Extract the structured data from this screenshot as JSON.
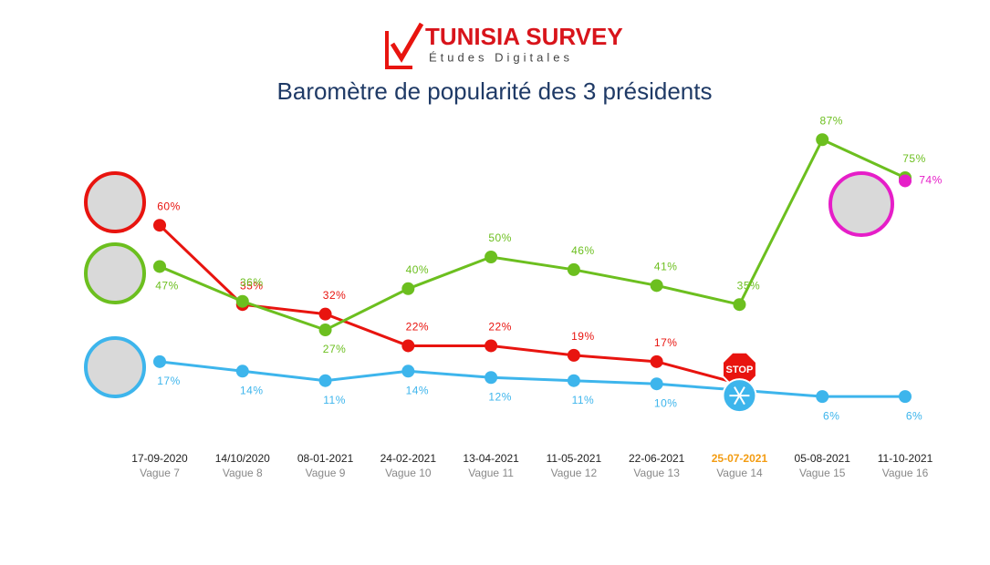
{
  "header": {
    "brand": "TUNISIA SURVEY",
    "tagline": "Études Digitales"
  },
  "chart_data": {
    "type": "line",
    "title": "Baromètre de popularité des 3 présidents",
    "categories": [
      "17-09-2020",
      "14/10/2020",
      "08-01-2021",
      "24-02-2021",
      "13-04-2021",
      "11-05-2021",
      "22-06-2021",
      "25-07-2021",
      "05-08-2021",
      "11-10-2021"
    ],
    "waves": [
      "Vague 7",
      "Vague 8",
      "Vague 9",
      "Vague 10",
      "Vague 11",
      "Vague 12",
      "Vague 13",
      "Vague 14",
      "Vague 15",
      "Vague 16"
    ],
    "highlight": 7,
    "highlight_color": "#f39c12",
    "stop_label": "STOP",
    "ylim": [
      0,
      100
    ],
    "series": [
      {
        "color": "#e8140f",
        "values": [
          60,
          35,
          32,
          22,
          22,
          19,
          17,
          10,
          null,
          null
        ],
        "value_labels": [
          "60%",
          "35%",
          "32%",
          "22%",
          "22%",
          "19%",
          "17%",
          null,
          null,
          null
        ]
      },
      {
        "color": "#6cbf1f",
        "values": [
          47,
          36,
          27,
          40,
          50,
          46,
          41,
          35,
          87,
          75
        ],
        "value_labels": [
          "47%",
          "36%",
          "27%",
          "40%",
          "50%",
          "46%",
          "41%",
          "35%",
          "87%",
          "75%"
        ]
      },
      {
        "color": "#3db5ec",
        "values": [
          17,
          14,
          11,
          14,
          12,
          11,
          10,
          8,
          6,
          6
        ],
        "value_labels": [
          "17%",
          "14%",
          "11%",
          "14%",
          "12%",
          "11%",
          "10%",
          null,
          "6%",
          "6%"
        ]
      },
      {
        "color": "#e61ec8",
        "values": [
          null,
          null,
          null,
          null,
          null,
          null,
          null,
          null,
          null,
          74
        ],
        "value_labels": [
          null,
          null,
          null,
          null,
          null,
          null,
          null,
          null,
          null,
          "74%"
        ]
      }
    ]
  }
}
